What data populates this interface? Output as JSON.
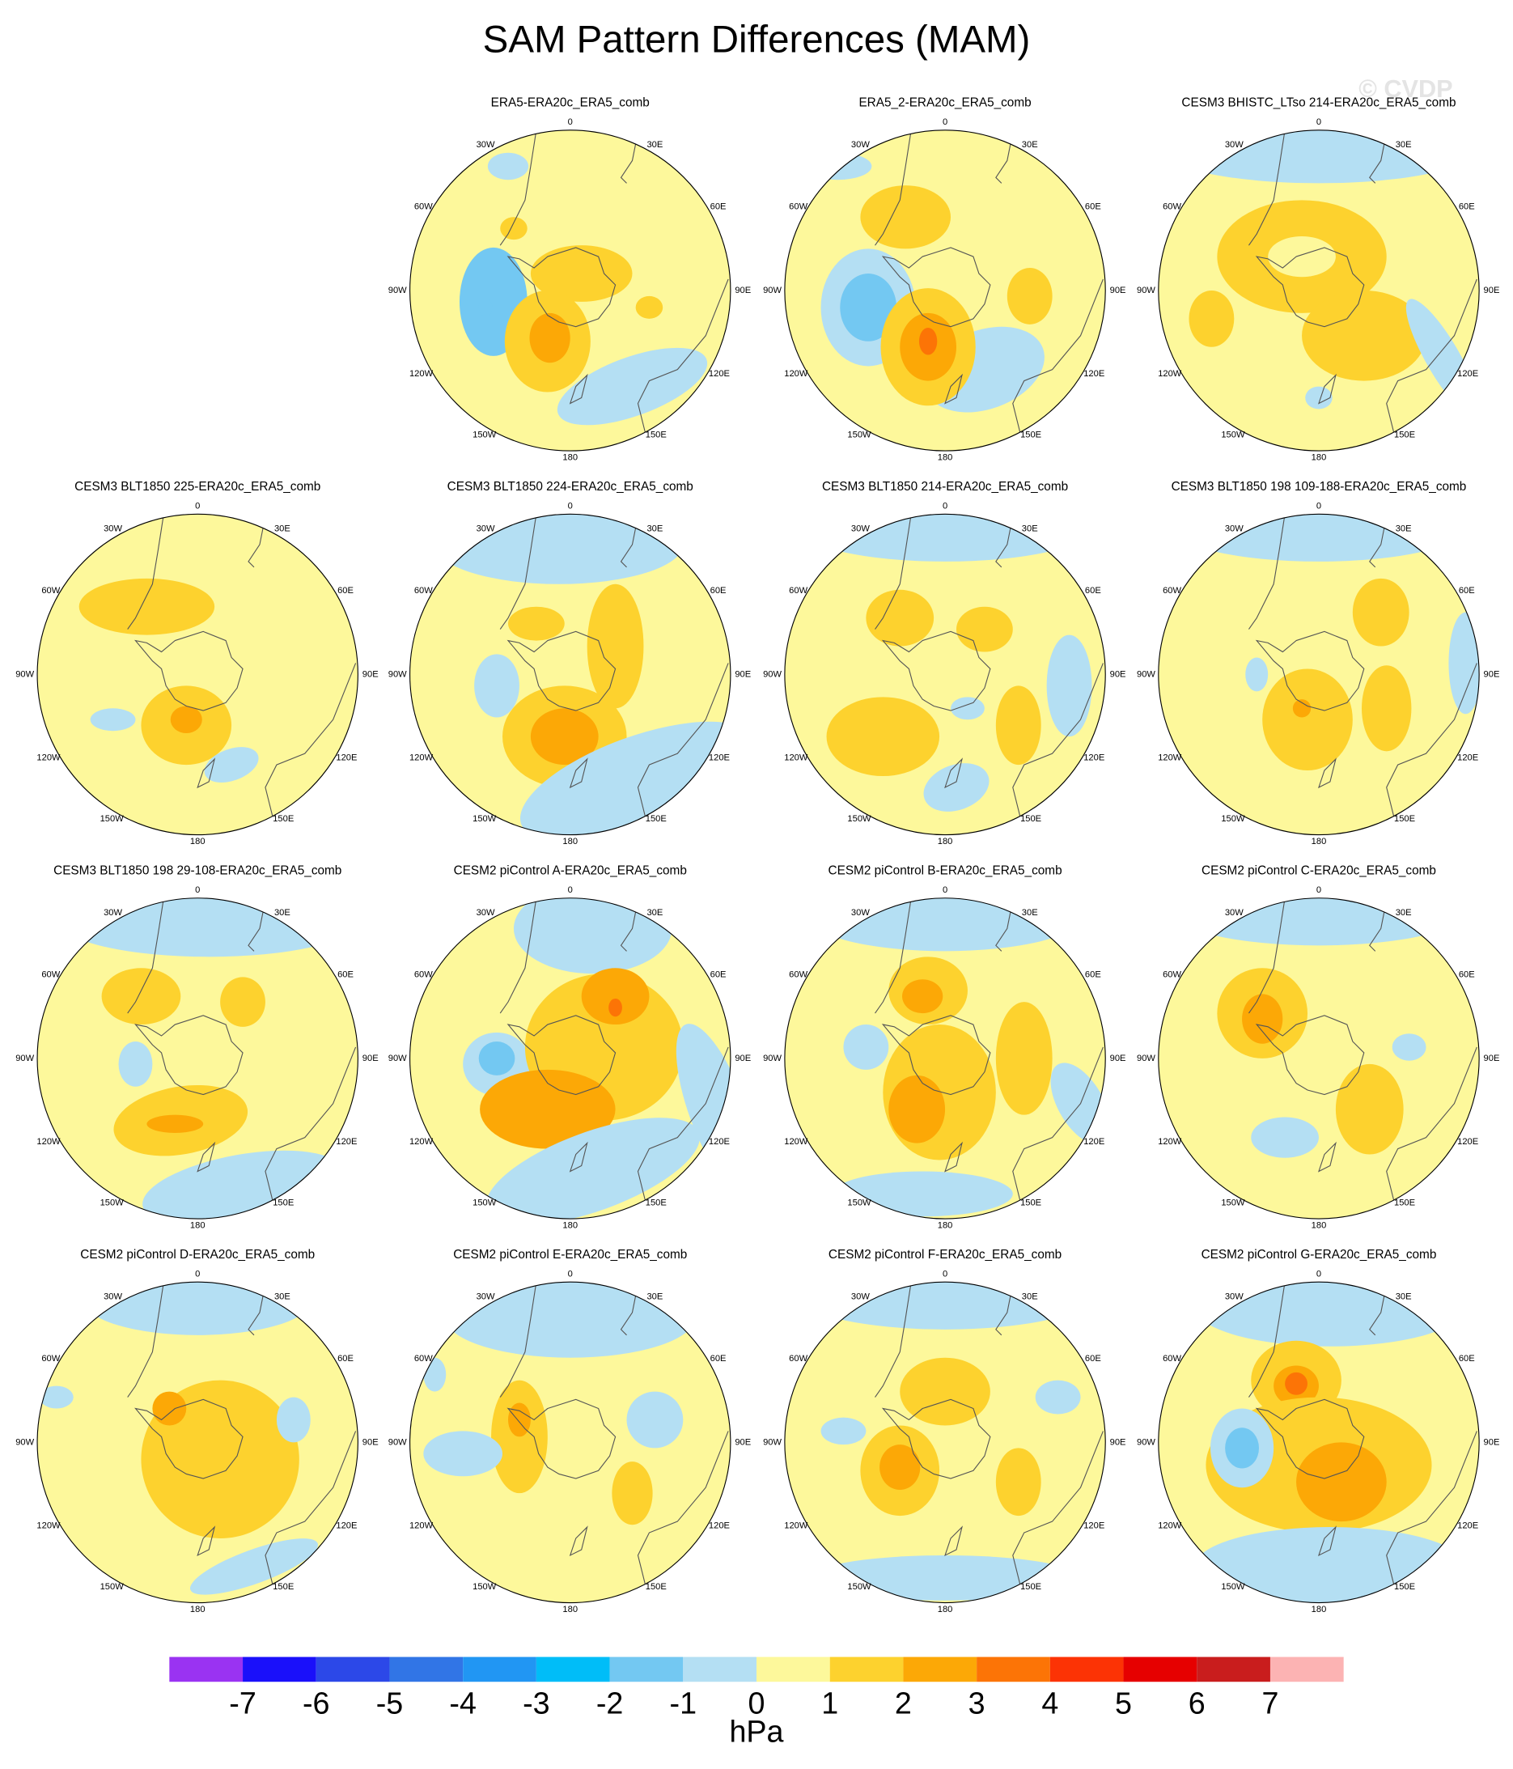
{
  "title": "SAM Pattern Differences (MAM)",
  "watermark": "© CVDP",
  "longitude_labels": [
    "0",
    "30E",
    "60E",
    "90E",
    "120E",
    "150E",
    "180",
    "150W",
    "120W",
    "90W",
    "60W",
    "30W"
  ],
  "panels": [
    {
      "title": "ERA5-ERA20c_ERA5_comb"
    },
    {
      "title": "ERA5_2-ERA20c_ERA5_comb"
    },
    {
      "title": "CESM3 BHISTC_LTso 214-ERA20c_ERA5_comb"
    },
    {
      "title": "CESM3 BLT1850 225-ERA20c_ERA5_comb"
    },
    {
      "title": "CESM3 BLT1850 224-ERA20c_ERA5_comb"
    },
    {
      "title": "CESM3 BLT1850 214-ERA20c_ERA5_comb"
    },
    {
      "title": "CESM3 BLT1850 198 109-188-ERA20c_ERA5_comb"
    },
    {
      "title": "CESM3 BLT1850 198 29-108-ERA20c_ERA5_comb"
    },
    {
      "title": "CESM2 piControl A-ERA20c_ERA5_comb"
    },
    {
      "title": "CESM2 piControl B-ERA20c_ERA5_comb"
    },
    {
      "title": "CESM2 piControl C-ERA20c_ERA5_comb"
    },
    {
      "title": "CESM2 piControl D-ERA20c_ERA5_comb"
    },
    {
      "title": "CESM2 piControl E-ERA20c_ERA5_comb"
    },
    {
      "title": "CESM2 piControl F-ERA20c_ERA5_comb"
    },
    {
      "title": "CESM2 piControl G-ERA20c_ERA5_comb"
    }
  ],
  "colorbar": {
    "colors": [
      "#9a33f2",
      "#1a10fa",
      "#2c48e8",
      "#3175e6",
      "#2196f3",
      "#00bdf8",
      "#73c8f2",
      "#b4dff3",
      "#fdf89b",
      "#fdd22e",
      "#fca806",
      "#fc7406",
      "#fc3305",
      "#e60000",
      "#c91d1d",
      "#fcb3b3"
    ],
    "ticks": [
      -7,
      -6,
      -5,
      -4,
      -3,
      -2,
      -1,
      0,
      1,
      2,
      3,
      4,
      5,
      6,
      7
    ],
    "label": "hPa"
  }
}
